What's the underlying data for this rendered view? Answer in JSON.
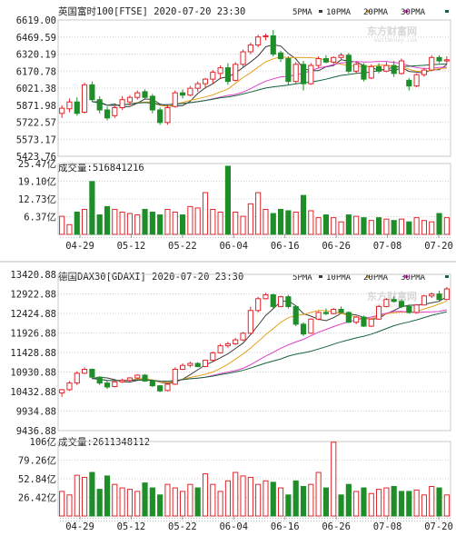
{
  "watermark": {
    "name": "东方财富网",
    "url": "eastmoney.com"
  },
  "legend": [
    {
      "label": "5PMA",
      "color": "#3c3c3c"
    },
    {
      "label": "10PMA",
      "color": "#e6a21e"
    },
    {
      "label": "20PMA",
      "color": "#e040c8"
    },
    {
      "label": "30PMA",
      "color": "#14643c"
    }
  ],
  "colors": {
    "up": "#e0262b",
    "down": "#1e8e28"
  },
  "chart_data": [
    {
      "type": "candlestick",
      "title": "英国富时100[FTSE] 2020-07-20 23:30",
      "yticks": [
        "6619.00",
        "6469.59",
        "6320.19",
        "6170.78",
        "6021.38",
        "5871.98",
        "5722.57",
        "5573.17",
        "5423.76"
      ],
      "ylim": [
        5423.76,
        6619.0
      ],
      "xticks": [
        "04-29",
        "05-12",
        "05-22",
        "06-04",
        "06-16",
        "06-26",
        "07-08",
        "07-20"
      ],
      "volume": {
        "label": "成交量:516841216",
        "yticks": [
          "25.47亿",
          "19.10亿",
          "12.73亿",
          "6.37亿"
        ],
        "ylim": [
          0,
          25.47
        ],
        "values": [
          6.5,
          3.5,
          8.0,
          9.0,
          19.0,
          7.0,
          10.0,
          9.0,
          8.0,
          7.5,
          7.0,
          9.0,
          8.0,
          7.0,
          9.0,
          8.0,
          7.0,
          10.0,
          9.5,
          15.0,
          9.0,
          8.0,
          24.5,
          8.0,
          6.5,
          11.0,
          15.0,
          9.0,
          7.5,
          9.0,
          8.5,
          8.0,
          14.0,
          8.5,
          6.0,
          7.0,
          6.0,
          4.5,
          7.0,
          6.5,
          6.0,
          5.0,
          6.0,
          5.5,
          5.0,
          5.5,
          4.5,
          6.0,
          5.0,
          4.5,
          7.5,
          6.0
        ]
      },
      "candles": [
        {
          "o": 5800,
          "h": 5870,
          "l": 5760,
          "c": 5845
        },
        {
          "o": 5840,
          "h": 5930,
          "l": 5810,
          "c": 5900
        },
        {
          "o": 5900,
          "h": 5940,
          "l": 5780,
          "c": 5800
        },
        {
          "o": 5810,
          "h": 6070,
          "l": 5800,
          "c": 6050
        },
        {
          "o": 6050,
          "h": 6080,
          "l": 5900,
          "c": 5920
        },
        {
          "o": 5920,
          "h": 5950,
          "l": 5800,
          "c": 5830
        },
        {
          "o": 5830,
          "h": 5860,
          "l": 5740,
          "c": 5760
        },
        {
          "o": 5780,
          "h": 5870,
          "l": 5760,
          "c": 5850
        },
        {
          "o": 5850,
          "h": 5950,
          "l": 5830,
          "c": 5920
        },
        {
          "o": 5900,
          "h": 5960,
          "l": 5870,
          "c": 5940
        },
        {
          "o": 5940,
          "h": 6000,
          "l": 5920,
          "c": 5980
        },
        {
          "o": 5990,
          "h": 6010,
          "l": 5920,
          "c": 5940
        },
        {
          "o": 5950,
          "h": 5970,
          "l": 5800,
          "c": 5830
        },
        {
          "o": 5830,
          "h": 5850,
          "l": 5700,
          "c": 5720
        },
        {
          "o": 5720,
          "h": 5870,
          "l": 5700,
          "c": 5850
        },
        {
          "o": 5860,
          "h": 6000,
          "l": 5850,
          "c": 5980
        },
        {
          "o": 5980,
          "h": 6010,
          "l": 5930,
          "c": 5960
        },
        {
          "o": 5960,
          "h": 6040,
          "l": 5950,
          "c": 6020
        },
        {
          "o": 6020,
          "h": 6080,
          "l": 5990,
          "c": 6060
        },
        {
          "o": 6060,
          "h": 6110,
          "l": 6020,
          "c": 6100
        },
        {
          "o": 6100,
          "h": 6180,
          "l": 6060,
          "c": 6160
        },
        {
          "o": 6150,
          "h": 6220,
          "l": 6100,
          "c": 6200
        },
        {
          "o": 6200,
          "h": 6240,
          "l": 6050,
          "c": 6080
        },
        {
          "o": 6090,
          "h": 6250,
          "l": 6080,
          "c": 6230
        },
        {
          "o": 6230,
          "h": 6360,
          "l": 6210,
          "c": 6340
        },
        {
          "o": 6340,
          "h": 6420,
          "l": 6320,
          "c": 6400
        },
        {
          "o": 6400,
          "h": 6490,
          "l": 6380,
          "c": 6470
        },
        {
          "o": 6480,
          "h": 6500,
          "l": 6440,
          "c": 6480
        },
        {
          "o": 6480,
          "h": 6530,
          "l": 6300,
          "c": 6320
        },
        {
          "o": 6330,
          "h": 6350,
          "l": 6250,
          "c": 6280
        },
        {
          "o": 6280,
          "h": 6300,
          "l": 6050,
          "c": 6080
        },
        {
          "o": 6080,
          "h": 6250,
          "l": 6060,
          "c": 6230
        },
        {
          "o": 6230,
          "h": 6260,
          "l": 6000,
          "c": 6060
        },
        {
          "o": 6060,
          "h": 6240,
          "l": 6050,
          "c": 6220
        },
        {
          "o": 6220,
          "h": 6300,
          "l": 6200,
          "c": 6280
        },
        {
          "o": 6280,
          "h": 6310,
          "l": 6240,
          "c": 6250
        },
        {
          "o": 6250,
          "h": 6300,
          "l": 6230,
          "c": 6290
        },
        {
          "o": 6290,
          "h": 6330,
          "l": 6270,
          "c": 6310
        },
        {
          "o": 6310,
          "h": 6330,
          "l": 6150,
          "c": 6170
        },
        {
          "o": 6170,
          "h": 6250,
          "l": 6150,
          "c": 6230
        },
        {
          "o": 6220,
          "h": 6240,
          "l": 6080,
          "c": 6100
        },
        {
          "o": 6110,
          "h": 6230,
          "l": 6100,
          "c": 6210
        },
        {
          "o": 6210,
          "h": 6240,
          "l": 6150,
          "c": 6170
        },
        {
          "o": 6170,
          "h": 6250,
          "l": 6160,
          "c": 6220
        },
        {
          "o": 6220,
          "h": 6260,
          "l": 6120,
          "c": 6150
        },
        {
          "o": 6150,
          "h": 6280,
          "l": 6140,
          "c": 6260
        },
        {
          "o": 6090,
          "h": 6110,
          "l": 6000,
          "c": 6040
        },
        {
          "o": 6040,
          "h": 6150,
          "l": 6030,
          "c": 6140
        },
        {
          "o": 6140,
          "h": 6200,
          "l": 6120,
          "c": 6180
        },
        {
          "o": 6180,
          "h": 6310,
          "l": 6170,
          "c": 6290
        },
        {
          "o": 6290,
          "h": 6310,
          "l": 6240,
          "c": 6260
        },
        {
          "o": 6260,
          "h": 6300,
          "l": 6230,
          "c": 6270
        }
      ]
    },
    {
      "type": "candlestick",
      "title": "德国DAX30[GDAXI] 2020-07-20 23:30",
      "yticks": [
        "13420.88",
        "12922.88",
        "12424.88",
        "11926.88",
        "11428.88",
        "10930.88",
        "10432.88",
        "9934.88",
        "9436.88"
      ],
      "ylim": [
        9436.88,
        13420.88
      ],
      "xticks": [
        "04-29",
        "05-12",
        "05-22",
        "06-04",
        "06-16",
        "06-26",
        "07-08",
        "07-20"
      ],
      "volume": {
        "label": "成交量:2611348112",
        "yticks": [
          "106亿",
          "79.26亿",
          "52.84亿",
          "26.42亿"
        ],
        "ylim": [
          0,
          106
        ],
        "values": [
          35,
          30,
          58,
          55,
          62,
          38,
          57,
          45,
          40,
          38,
          35,
          47,
          40,
          30,
          45,
          40,
          35,
          45,
          40,
          60,
          45,
          35,
          50,
          62,
          57,
          55,
          45,
          50,
          48,
          40,
          30,
          50,
          42,
          45,
          62,
          40,
          105,
          30,
          45,
          35,
          40,
          32,
          38,
          40,
          42,
          35,
          35,
          37,
          30,
          42,
          40,
          30
        ]
      },
      "candles": [
        {
          "o": 10400,
          "h": 10500,
          "l": 10300,
          "c": 10480
        },
        {
          "o": 10480,
          "h": 10700,
          "l": 10450,
          "c": 10650
        },
        {
          "o": 10650,
          "h": 10950,
          "l": 10600,
          "c": 10900
        },
        {
          "o": 10900,
          "h": 11050,
          "l": 10880,
          "c": 11000
        },
        {
          "o": 11000,
          "h": 11020,
          "l": 10750,
          "c": 10800
        },
        {
          "o": 10800,
          "h": 10820,
          "l": 10600,
          "c": 10650
        },
        {
          "o": 10650,
          "h": 10700,
          "l": 10500,
          "c": 10550
        },
        {
          "o": 10560,
          "h": 10700,
          "l": 10540,
          "c": 10680
        },
        {
          "o": 10680,
          "h": 10760,
          "l": 10650,
          "c": 10720
        },
        {
          "o": 10720,
          "h": 10800,
          "l": 10690,
          "c": 10780
        },
        {
          "o": 10780,
          "h": 10870,
          "l": 10760,
          "c": 10850
        },
        {
          "o": 10850,
          "h": 10880,
          "l": 10680,
          "c": 10700
        },
        {
          "o": 10700,
          "h": 10720,
          "l": 10550,
          "c": 10580
        },
        {
          "o": 10580,
          "h": 10600,
          "l": 10420,
          "c": 10450
        },
        {
          "o": 10460,
          "h": 10650,
          "l": 10440,
          "c": 10620
        },
        {
          "o": 10620,
          "h": 11050,
          "l": 10600,
          "c": 11000
        },
        {
          "o": 11000,
          "h": 11150,
          "l": 10980,
          "c": 11100
        },
        {
          "o": 11100,
          "h": 11200,
          "l": 11050,
          "c": 11150
        },
        {
          "o": 11150,
          "h": 11180,
          "l": 11050,
          "c": 11070
        },
        {
          "o": 11070,
          "h": 11250,
          "l": 11060,
          "c": 11230
        },
        {
          "o": 11230,
          "h": 11450,
          "l": 11200,
          "c": 11420
        },
        {
          "o": 11420,
          "h": 11650,
          "l": 11400,
          "c": 11600
        },
        {
          "o": 11600,
          "h": 11700,
          "l": 11550,
          "c": 11650
        },
        {
          "o": 11650,
          "h": 11800,
          "l": 11620,
          "c": 11750
        },
        {
          "o": 11750,
          "h": 11950,
          "l": 11720,
          "c": 11920
        },
        {
          "o": 11920,
          "h": 12600,
          "l": 11900,
          "c": 12500
        },
        {
          "o": 12500,
          "h": 12850,
          "l": 12450,
          "c": 12800
        },
        {
          "o": 12800,
          "h": 12950,
          "l": 12780,
          "c": 12900
        },
        {
          "o": 12900,
          "h": 12930,
          "l": 12550,
          "c": 12600
        },
        {
          "o": 12600,
          "h": 12880,
          "l": 12580,
          "c": 12850
        },
        {
          "o": 12850,
          "h": 12900,
          "l": 12550,
          "c": 12600
        },
        {
          "o": 12600,
          "h": 12620,
          "l": 12100,
          "c": 12150
        },
        {
          "o": 12150,
          "h": 12200,
          "l": 11850,
          "c": 11900
        },
        {
          "o": 11920,
          "h": 12300,
          "l": 11900,
          "c": 12280
        },
        {
          "o": 12280,
          "h": 12480,
          "l": 12250,
          "c": 12450
        },
        {
          "o": 12450,
          "h": 12550,
          "l": 12380,
          "c": 12420
        },
        {
          "o": 12420,
          "h": 12560,
          "l": 12400,
          "c": 12530
        },
        {
          "o": 12530,
          "h": 12600,
          "l": 12420,
          "c": 12450
        },
        {
          "o": 12450,
          "h": 12480,
          "l": 12180,
          "c": 12200
        },
        {
          "o": 12200,
          "h": 12360,
          "l": 12150,
          "c": 12330
        },
        {
          "o": 12330,
          "h": 12370,
          "l": 12080,
          "c": 12100
        },
        {
          "o": 12100,
          "h": 12300,
          "l": 12080,
          "c": 12280
        },
        {
          "o": 12280,
          "h": 12640,
          "l": 12260,
          "c": 12600
        },
        {
          "o": 12600,
          "h": 12820,
          "l": 12580,
          "c": 12780
        },
        {
          "o": 12780,
          "h": 12860,
          "l": 12700,
          "c": 12730
        },
        {
          "o": 12730,
          "h": 12780,
          "l": 12560,
          "c": 12600
        },
        {
          "o": 12600,
          "h": 12650,
          "l": 12420,
          "c": 12450
        },
        {
          "o": 12450,
          "h": 12660,
          "l": 12420,
          "c": 12640
        },
        {
          "o": 12640,
          "h": 12900,
          "l": 12630,
          "c": 12870
        },
        {
          "o": 12870,
          "h": 12960,
          "l": 12820,
          "c": 12920
        },
        {
          "o": 12920,
          "h": 13000,
          "l": 12750,
          "c": 12780
        },
        {
          "o": 12780,
          "h": 13100,
          "l": 12760,
          "c": 13050
        }
      ]
    }
  ]
}
